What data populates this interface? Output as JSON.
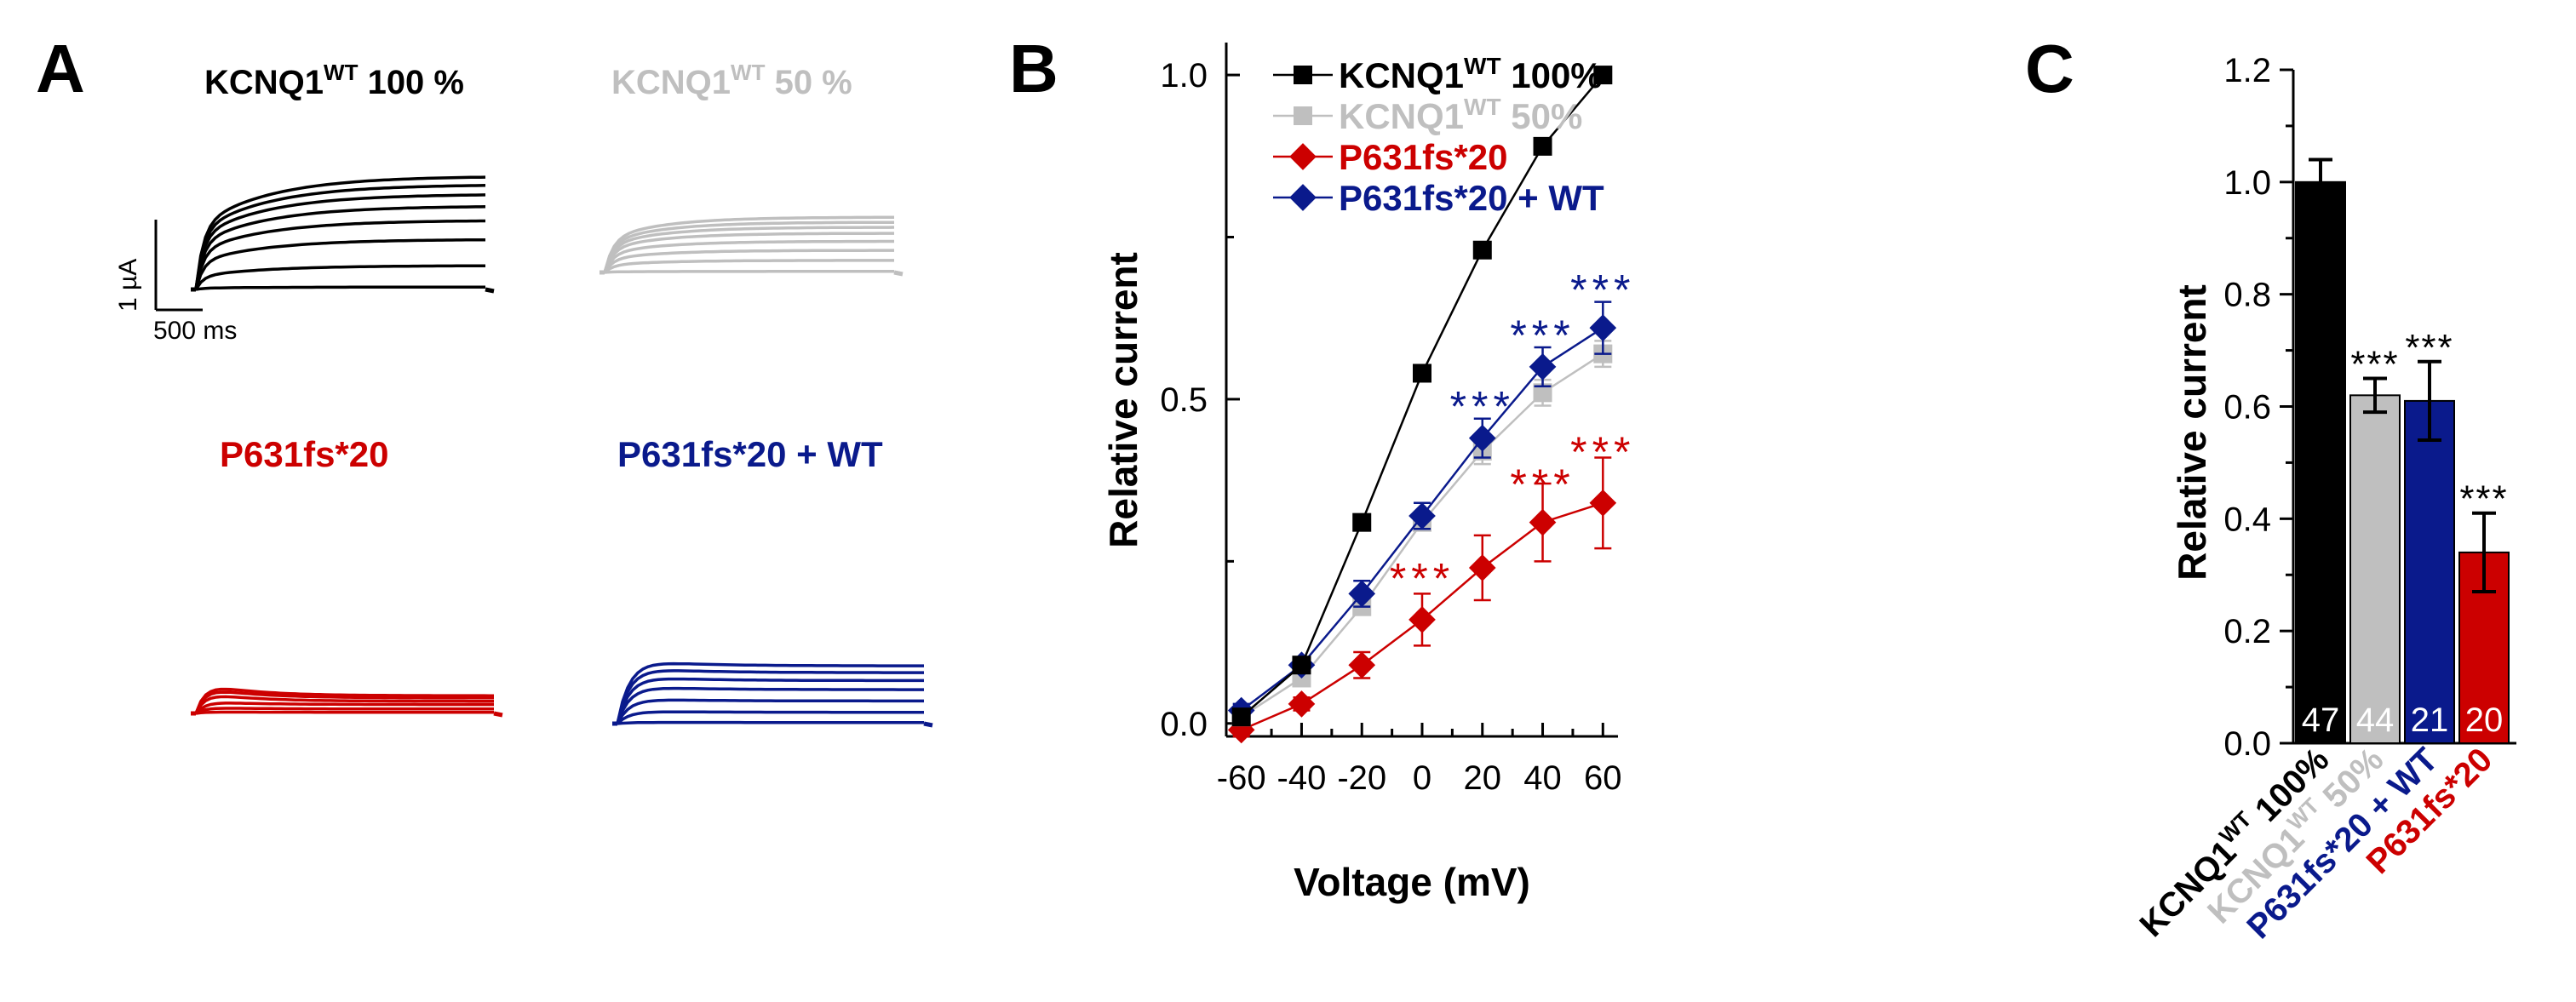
{
  "colors": {
    "black": "#000000",
    "gray": "#bfbfbf",
    "red": "#cc0000",
    "blue": "#0a1a8c"
  },
  "panelA": {
    "letter": "A",
    "labels": [
      {
        "key": "wt100",
        "base": "KCNQ1",
        "sup": "WT",
        "suffix": " 100 %"
      },
      {
        "key": "wt50",
        "base": "KCNQ1",
        "sup": "WT",
        "suffix": " 50 %"
      },
      {
        "key": "mut",
        "text": "P631fs*20"
      },
      {
        "key": "mutwt",
        "text": "P631fs*20 + WT"
      }
    ],
    "scale_current": "1 µA",
    "scale_time": "500 ms",
    "trace_levels": {
      "wt100": [
        0.02,
        0.2,
        0.42,
        0.58,
        0.7,
        0.8,
        0.88,
        0.95
      ],
      "wt50": [
        0.01,
        0.12,
        0.22,
        0.31,
        0.39,
        0.45,
        0.5,
        0.55
      ],
      "mut": [
        0.01,
        0.04,
        0.08,
        0.11,
        0.14,
        0.16
      ],
      "mutwt": [
        0.01,
        0.1,
        0.2,
        0.3,
        0.38,
        0.45,
        0.51
      ]
    }
  },
  "chart_data": [
    {
      "panel": "B",
      "type": "line",
      "xlabel": "Voltage (mV)",
      "ylabel": "Relative current",
      "xlim": [
        -65,
        65
      ],
      "ylim": [
        -0.02,
        1.05
      ],
      "xticks": [
        -60,
        -40,
        -20,
        0,
        20,
        40,
        60
      ],
      "yticks": [
        0.0,
        0.5,
        1.0
      ],
      "ytick_labels": [
        "0.0",
        "0.5",
        "1.0"
      ],
      "x": [
        -60,
        -40,
        -20,
        0,
        20,
        40,
        60
      ],
      "series": [
        {
          "name": "KCNQ1WT 100%",
          "label_base": "KCNQ1",
          "label_sup": "WT",
          "label_suffix": " 100%",
          "marker": "square",
          "color": "#000000",
          "values": [
            0.01,
            0.09,
            0.31,
            0.54,
            0.73,
            0.89,
            1.0
          ],
          "errors": [
            0.01,
            0.01,
            0.01,
            0.01,
            0.01,
            0.01,
            0.0
          ]
        },
        {
          "name": "KCNQ1WT 50%",
          "label_base": "KCNQ1",
          "label_sup": "WT",
          "label_suffix": " 50%",
          "marker": "square",
          "color": "#bfbfbf",
          "values": [
            0.01,
            0.07,
            0.18,
            0.31,
            0.42,
            0.51,
            0.57
          ],
          "errors": [
            0.01,
            0.01,
            0.01,
            0.01,
            0.02,
            0.02,
            0.02
          ]
        },
        {
          "name": "P631fs*20",
          "label_base": "P631fs*20",
          "marker": "diamond",
          "color": "#cc0000",
          "values": [
            -0.01,
            0.03,
            0.09,
            0.16,
            0.24,
            0.31,
            0.34
          ],
          "errors": [
            0.01,
            0.01,
            0.02,
            0.04,
            0.05,
            0.06,
            0.07
          ]
        },
        {
          "name": "P631fs*20 + WT",
          "label_base": "P631fs*20 + WT",
          "marker": "diamond",
          "color": "#0a1a8c",
          "values": [
            0.02,
            0.09,
            0.2,
            0.32,
            0.44,
            0.55,
            0.61
          ],
          "errors": [
            0.01,
            0.01,
            0.02,
            0.02,
            0.03,
            0.03,
            0.04
          ]
        }
      ],
      "annotations": [
        {
          "text": "***",
          "x": 0,
          "y": 0.225,
          "color": "#cc0000"
        },
        {
          "text": "***",
          "x": 20,
          "y": 0.49,
          "color": "#0a1a8c"
        },
        {
          "text": "***",
          "x": 40,
          "y": 0.37,
          "color": "#cc0000"
        },
        {
          "text": "***",
          "x": 40,
          "y": 0.6,
          "color": "#0a1a8c"
        },
        {
          "text": "***",
          "x": 60,
          "y": 0.42,
          "color": "#cc0000"
        },
        {
          "text": "***",
          "x": 60,
          "y": 0.67,
          "color": "#0a1a8c"
        }
      ]
    },
    {
      "panel": "C",
      "type": "bar",
      "ylabel": "Relative current",
      "ylim": [
        0.0,
        1.2
      ],
      "yticks": [
        0.0,
        0.2,
        0.4,
        0.6,
        0.8,
        1.0,
        1.2
      ],
      "ytick_labels": [
        "0.0",
        "0.2",
        "0.4",
        "0.6",
        "0.8",
        "1.0",
        "1.2"
      ],
      "categories": [
        {
          "base": "KCNQ1",
          "sup": "WT",
          "suffix": " 100%",
          "color": "#000000"
        },
        {
          "base": "KCNQ1",
          "sup": "WT",
          "suffix": " 50%",
          "color": "#bfbfbf"
        },
        {
          "base": "P631fs*20 + WT",
          "color": "#0a1a8c"
        },
        {
          "base": "P631fs*20",
          "color": "#cc0000"
        }
      ],
      "values": [
        1.0,
        0.62,
        0.61,
        0.34
      ],
      "errors": [
        0.04,
        0.03,
        0.07,
        0.07
      ],
      "n": [
        "47",
        "44",
        "21",
        "20"
      ],
      "sig": [
        "",
        "***",
        "***",
        "***"
      ]
    }
  ]
}
